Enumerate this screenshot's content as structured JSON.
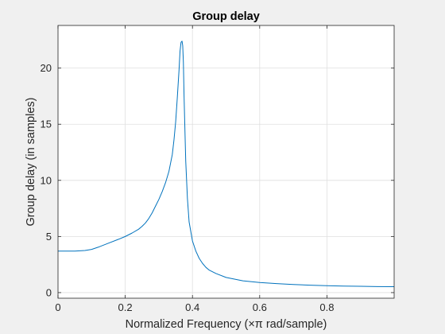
{
  "chart_data": {
    "type": "line",
    "title": "Group delay",
    "xlabel": "Normalized Frequency  (×π rad/sample)",
    "ylabel": "Group delay (in samples)",
    "xlim": [
      0,
      1
    ],
    "ylim": [
      -0.5,
      23.8
    ],
    "xticks": [
      0,
      0.2,
      0.4,
      0.6,
      0.8
    ],
    "xtick_labels": [
      "0",
      "0.2",
      "0.4",
      "0.6",
      "0.8"
    ],
    "yticks": [
      0,
      5,
      10,
      15,
      20
    ],
    "ytick_labels": [
      "0",
      "5",
      "10",
      "15",
      "20"
    ],
    "grid": true,
    "series_color": "#0072bd",
    "series": [
      {
        "x": [
          0,
          0.05,
          0.08,
          0.1,
          0.12,
          0.15,
          0.18,
          0.2,
          0.22,
          0.24,
          0.25,
          0.26,
          0.27,
          0.28,
          0.29,
          0.3,
          0.31,
          0.32,
          0.33,
          0.34,
          0.345,
          0.35,
          0.355,
          0.36,
          0.363,
          0.366,
          0.369,
          0.371,
          0.373,
          0.375,
          0.378,
          0.38,
          0.385,
          0.39,
          0.4,
          0.41,
          0.42,
          0.43,
          0.44,
          0.45,
          0.47,
          0.5,
          0.55,
          0.6,
          0.65,
          0.7,
          0.75,
          0.8,
          0.85,
          0.9,
          0.95,
          1.0
        ],
        "y": [
          3.7,
          3.7,
          3.75,
          3.85,
          4.05,
          4.4,
          4.75,
          5.0,
          5.3,
          5.65,
          5.9,
          6.2,
          6.6,
          7.1,
          7.7,
          8.3,
          9.0,
          9.8,
          10.8,
          12.3,
          13.6,
          15.2,
          17.4,
          19.8,
          21.5,
          22.3,
          22.4,
          22.0,
          20.5,
          17.5,
          14.0,
          11.7,
          8.4,
          6.3,
          4.6,
          3.7,
          3.05,
          2.6,
          2.25,
          2.0,
          1.7,
          1.35,
          1.05,
          0.9,
          0.8,
          0.72,
          0.66,
          0.62,
          0.58,
          0.56,
          0.54,
          0.53
        ]
      }
    ]
  }
}
